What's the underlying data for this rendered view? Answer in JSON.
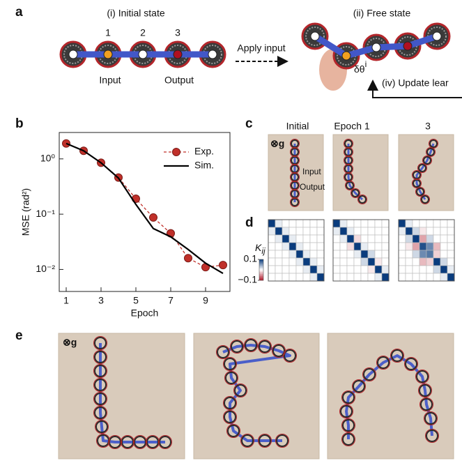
{
  "panel_a": {
    "label": "a",
    "initial_title": "(i) Initial state",
    "node_labels": [
      "1",
      "2",
      "3"
    ],
    "input_label": "Input",
    "output_label": "Output",
    "arrow_label": "Apply input",
    "free_title": "(ii) Free state",
    "delta_label": "δθ",
    "delta_sup": "i",
    "update_label": "(iv) Update lear"
  },
  "chart_data": {
    "type": "line",
    "label": "b",
    "x": [
      1,
      2,
      3,
      4,
      5,
      6,
      7,
      8,
      9,
      10
    ],
    "series": [
      {
        "name": "Exp.",
        "color": "#c0302a",
        "marker": "circle",
        "dashed": true,
        "values": [
          1.9,
          1.4,
          0.85,
          0.46,
          0.19,
          0.087,
          0.045,
          0.016,
          0.011,
          0.012
        ]
      },
      {
        "name": "Sim.",
        "color": "#000000",
        "marker": "none",
        "dashed": false,
        "values": [
          1.9,
          1.4,
          0.85,
          0.45,
          0.15,
          0.055,
          0.039,
          0.023,
          0.013,
          0.0085
        ]
      }
    ],
    "xlim": [
      0.6,
      10.4
    ],
    "xticks": [
      1,
      3,
      5,
      7,
      9
    ],
    "ylim": [
      0.004,
      3
    ],
    "log_y": true,
    "yticks": [
      {
        "value": 1,
        "label": "10⁰"
      },
      {
        "value": 0.1,
        "label": "10⁻¹"
      },
      {
        "value": 0.01,
        "label": "10⁻²"
      }
    ],
    "xlabel": "Epoch",
    "ylabel": "MSE (rad²)",
    "legend": "upper right",
    "grid": false
  },
  "panel_c": {
    "label": "c",
    "columns": [
      "Initial",
      "Epoch 1",
      "3"
    ],
    "gravity": "⊗g",
    "input_label": "Input",
    "output_label": "Output"
  },
  "panel_d": {
    "label": "d",
    "colorbar_label": "K",
    "colorbar_sub": "ij",
    "clim": [
      -0.1,
      0.1
    ],
    "colorbar_ticks": [
      0.1,
      {
        "value": -0.1,
        "label": "−0.1"
      }
    ],
    "matrices": [
      [
        [
          0.1,
          0.01,
          0,
          0,
          0,
          0,
          0,
          0
        ],
        [
          0.01,
          0.1,
          0.01,
          0,
          0,
          0,
          0,
          0
        ],
        [
          0,
          0.01,
          0.1,
          0.01,
          0,
          0,
          0,
          0
        ],
        [
          0,
          0,
          0.01,
          0.1,
          0.01,
          0,
          0,
          0
        ],
        [
          0,
          0,
          0,
          0.01,
          0.1,
          0.01,
          0,
          0
        ],
        [
          0,
          0,
          0,
          0,
          0.01,
          0.1,
          0.01,
          0
        ],
        [
          0,
          0,
          0,
          0,
          0,
          0.01,
          0.1,
          0.01
        ],
        [
          0,
          0,
          0,
          0,
          0,
          0,
          0.01,
          0.1
        ]
      ],
      [
        [
          0.1,
          0.01,
          0,
          0,
          0,
          0,
          0,
          0
        ],
        [
          0.01,
          0.1,
          0.01,
          0,
          0,
          0,
          0,
          0
        ],
        [
          0,
          0.01,
          0.1,
          -0.015,
          0,
          0,
          0,
          0
        ],
        [
          0,
          0,
          -0.015,
          0.1,
          0.01,
          0,
          0,
          0
        ],
        [
          0,
          0,
          0,
          0.01,
          0.1,
          0.02,
          0,
          0
        ],
        [
          0,
          0,
          0,
          0,
          0.02,
          0.1,
          -0.01,
          0
        ],
        [
          0,
          0,
          0,
          0,
          0,
          -0.01,
          0.1,
          0.01
        ],
        [
          0,
          0,
          0,
          0,
          0,
          0,
          0.01,
          0.1
        ]
      ],
      [
        [
          0.1,
          0.01,
          0,
          0,
          0,
          0,
          0,
          0
        ],
        [
          0.01,
          0.1,
          0.02,
          -0.01,
          0,
          0,
          0,
          0
        ],
        [
          0,
          0.02,
          0.1,
          -0.04,
          0.02,
          0,
          0,
          0
        ],
        [
          0,
          -0.01,
          -0.04,
          0.09,
          0.06,
          -0.03,
          0,
          0
        ],
        [
          0,
          0,
          0.02,
          0.06,
          0.07,
          -0.02,
          0,
          0
        ],
        [
          0,
          0,
          0,
          -0.03,
          -0.02,
          0.1,
          0.02,
          0
        ],
        [
          0,
          0,
          0,
          0,
          0,
          0.02,
          0.1,
          0.01
        ],
        [
          0,
          0,
          0,
          0,
          0,
          0,
          0.01,
          0.1
        ]
      ]
    ]
  },
  "panel_e": {
    "label": "e",
    "gravity": "⊗g"
  }
}
